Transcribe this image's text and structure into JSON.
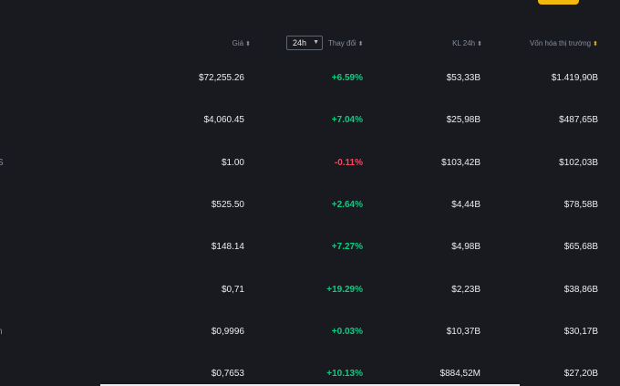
{
  "header": {
    "price_label": "Giá",
    "period_value": "24h",
    "change_label": "Thay đổi",
    "volume_label": "KL 24h",
    "marketcap_label": "Vốn hóa thị trường",
    "sort_glyph": "⬍"
  },
  "rows": [
    {
      "price": "$72,255.26",
      "change": "+6.59%",
      "volume": "$53,33B",
      "market_cap": "$1.419,90B",
      "direction": "up"
    },
    {
      "price": "$4,060.45",
      "change": "+7.04%",
      "volume": "$25,98B",
      "market_cap": "$487,65B",
      "direction": "up"
    },
    {
      "price": "$1.00",
      "change": "-0.11%",
      "volume": "$103,42B",
      "market_cap": "$102,03B",
      "direction": "down"
    },
    {
      "price": "$525.50",
      "change": "+2.64%",
      "volume": "$4,44B",
      "market_cap": "$78,58B",
      "direction": "up"
    },
    {
      "price": "$148.14",
      "change": "+7.27%",
      "volume": "$4,98B",
      "market_cap": "$65,68B",
      "direction": "up"
    },
    {
      "price": "$0,71",
      "change": "+19.29%",
      "volume": "$2,23B",
      "market_cap": "$38,86B",
      "direction": "up"
    },
    {
      "price": "$0,9996",
      "change": "+0.03%",
      "volume": "$10,37B",
      "market_cap": "$30,17B",
      "direction": "up"
    },
    {
      "price": "$0,7653",
      "change": "+10.13%",
      "volume": "$884,52M",
      "market_cap": "$27,20B",
      "direction": "up"
    }
  ],
  "clipped_text": {
    "row3": "S",
    "row7": "n"
  },
  "colors": {
    "background": "#181a20",
    "up": "#0ecb81",
    "down": "#f6465d",
    "accent": "#f0b90b",
    "muted": "#848e9c"
  }
}
